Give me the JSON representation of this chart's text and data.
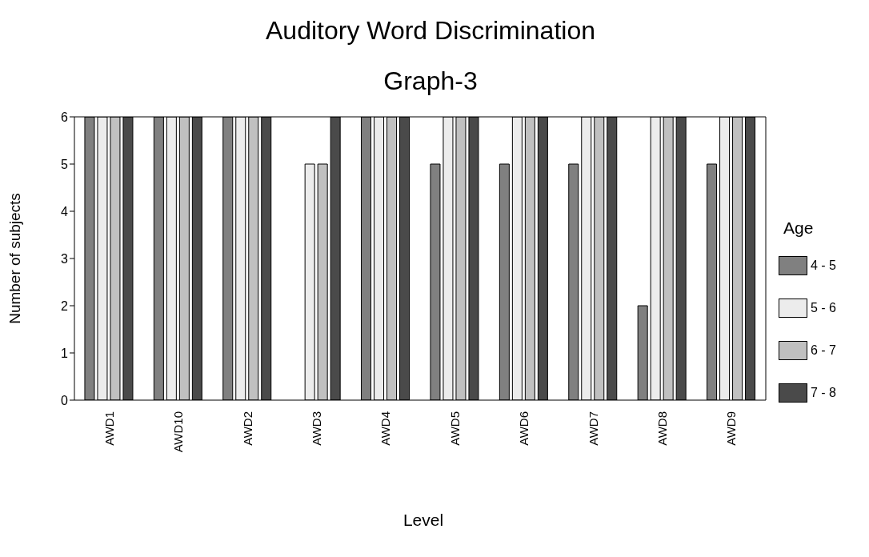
{
  "chart_data": {
    "type": "bar",
    "title": "Auditory Word Discrimination",
    "subtitle": "Graph-3",
    "xlabel": "Level",
    "ylabel": "Number of subjects",
    "legend_title": "Age",
    "legend": "right",
    "grid": false,
    "categories": [
      "AWD1",
      "AWD10",
      "AWD2",
      "AWD3",
      "AWD4",
      "AWD5",
      "AWD6",
      "AWD7",
      "AWD8",
      "AWD9"
    ],
    "ylim": [
      0,
      6
    ],
    "yticks": [
      0,
      1,
      2,
      3,
      4,
      5,
      6
    ],
    "series": [
      {
        "name": "4 - 5",
        "color": "#808080",
        "values": [
          6,
          6,
          6,
          0,
          6,
          5,
          5,
          5,
          2,
          5
        ]
      },
      {
        "name": "5 - 6",
        "color": "#ececec",
        "values": [
          6,
          6,
          6,
          5,
          6,
          6,
          6,
          6,
          6,
          6
        ]
      },
      {
        "name": "6 - 7",
        "color": "#c0c0c0",
        "values": [
          6,
          6,
          6,
          5,
          6,
          6,
          6,
          6,
          6,
          6
        ]
      },
      {
        "name": "7 - 8",
        "color": "#4a4a4a",
        "values": [
          6,
          6,
          6,
          6,
          6,
          6,
          6,
          6,
          6,
          6
        ]
      }
    ]
  }
}
